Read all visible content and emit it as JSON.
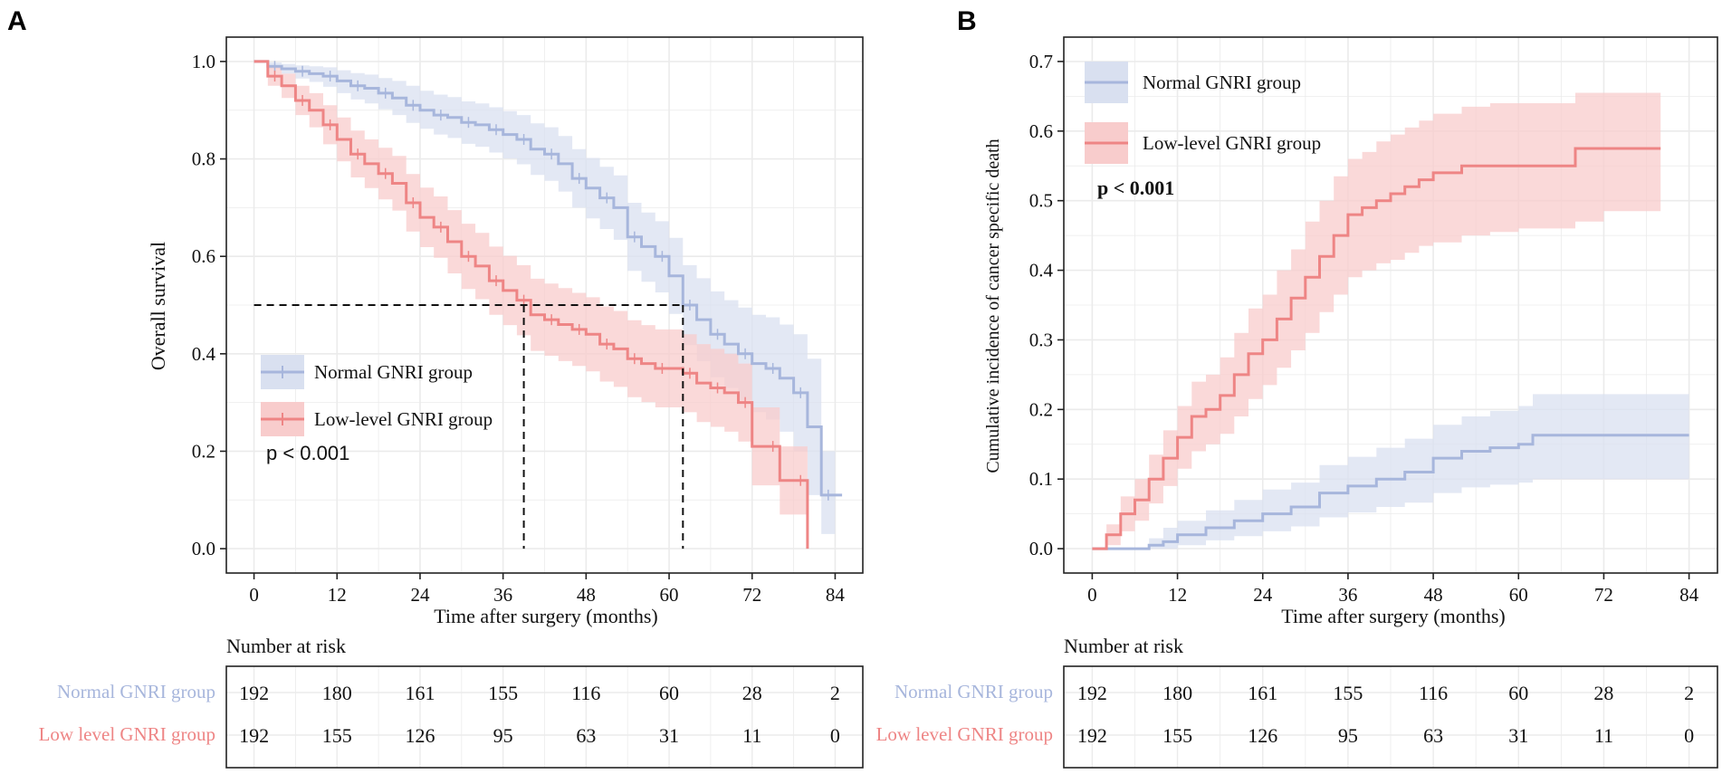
{
  "colors": {
    "normal": "#a7b6dc",
    "normal_band": "#d9e0f0",
    "low": "#ee8585",
    "low_band": "#f8cccc",
    "grid": "#ebebeb",
    "axis": "#222222"
  },
  "panel_a": {
    "letter": "A",
    "pvalue": "p < 0.001",
    "legend": [
      "Normal GNRI group",
      "Low-level GNRI group"
    ]
  },
  "panel_b": {
    "letter": "B",
    "pvalue": "p < 0.001",
    "legend": [
      "Normal GNRI group",
      "Low-level GNRI group"
    ]
  },
  "risk_table": {
    "title": "Number at risk",
    "row_labels": [
      "Normal GNRI group",
      "Low level GNRI group"
    ],
    "times": [
      0,
      12,
      24,
      36,
      48,
      60,
      72,
      84
    ],
    "normal": [
      "192",
      "180",
      "161",
      "155",
      "116",
      "60",
      "28",
      "2"
    ],
    "low": [
      "192",
      "155",
      "126",
      "95",
      "63",
      "31",
      "11",
      "0"
    ]
  },
  "chart_data": [
    {
      "id": "A",
      "type": "line",
      "title": "",
      "xlabel": "Time after surgery (months)",
      "ylabel": "Overall survival",
      "xlim": [
        -4,
        88
      ],
      "ylim": [
        -0.05,
        1.05
      ],
      "xticks": [
        0,
        12,
        24,
        36,
        48,
        60,
        72,
        84
      ],
      "yticks": [
        "0.0",
        "0.2",
        "0.4",
        "0.6",
        "0.8",
        "1.0"
      ],
      "median_survival": {
        "low": 39,
        "normal": 62
      },
      "reference_y": 0.5,
      "series": [
        {
          "name": "Normal GNRI group",
          "x": [
            0,
            2,
            4,
            6,
            8,
            10,
            12,
            14,
            16,
            18,
            20,
            22,
            24,
            26,
            28,
            30,
            32,
            34,
            36,
            38,
            40,
            42,
            44,
            46,
            48,
            50,
            52,
            54,
            56,
            58,
            60,
            62,
            64,
            66,
            68,
            70,
            72,
            74,
            76,
            78,
            80,
            82,
            84
          ],
          "y": [
            1.0,
            0.99,
            0.985,
            0.98,
            0.975,
            0.97,
            0.96,
            0.95,
            0.945,
            0.935,
            0.925,
            0.91,
            0.9,
            0.89,
            0.885,
            0.875,
            0.87,
            0.86,
            0.85,
            0.84,
            0.82,
            0.81,
            0.79,
            0.76,
            0.74,
            0.72,
            0.7,
            0.64,
            0.62,
            0.6,
            0.56,
            0.5,
            0.47,
            0.44,
            0.42,
            0.4,
            0.38,
            0.37,
            0.35,
            0.32,
            0.25,
            0.11,
            0.11
          ],
          "ci_low": [
            1.0,
            0.985,
            0.975,
            0.965,
            0.958,
            0.948,
            0.935,
            0.922,
            0.914,
            0.902,
            0.89,
            0.874,
            0.862,
            0.85,
            0.843,
            0.831,
            0.825,
            0.813,
            0.801,
            0.789,
            0.767,
            0.755,
            0.733,
            0.7,
            0.678,
            0.656,
            0.634,
            0.57,
            0.548,
            0.526,
            0.482,
            0.418,
            0.385,
            0.352,
            0.33,
            0.305,
            0.28,
            0.265,
            0.24,
            0.2,
            0.11,
            0.03,
            0.03
          ],
          "ci_high": [
            1.0,
            0.998,
            0.995,
            0.992,
            0.99,
            0.988,
            0.982,
            0.976,
            0.973,
            0.966,
            0.96,
            0.95,
            0.94,
            0.932,
            0.927,
            0.918,
            0.914,
            0.906,
            0.898,
            0.89,
            0.873,
            0.865,
            0.847,
            0.82,
            0.802,
            0.784,
            0.766,
            0.71,
            0.69,
            0.672,
            0.638,
            0.582,
            0.555,
            0.528,
            0.51,
            0.495,
            0.48,
            0.475,
            0.46,
            0.44,
            0.39,
            0.2,
            0.2
          ]
        },
        {
          "name": "Low-level GNRI group",
          "x": [
            0,
            2,
            4,
            6,
            8,
            10,
            12,
            14,
            16,
            18,
            20,
            22,
            24,
            26,
            28,
            30,
            32,
            34,
            36,
            38,
            40,
            42,
            44,
            46,
            48,
            50,
            52,
            54,
            56,
            58,
            60,
            62,
            64,
            66,
            68,
            70,
            72,
            74,
            76,
            78,
            80
          ],
          "y": [
            1.0,
            0.97,
            0.95,
            0.92,
            0.9,
            0.87,
            0.84,
            0.81,
            0.79,
            0.77,
            0.75,
            0.71,
            0.68,
            0.66,
            0.63,
            0.6,
            0.58,
            0.55,
            0.53,
            0.51,
            0.48,
            0.47,
            0.46,
            0.45,
            0.44,
            0.42,
            0.41,
            0.39,
            0.38,
            0.37,
            0.37,
            0.36,
            0.34,
            0.33,
            0.32,
            0.3,
            0.21,
            0.21,
            0.14,
            0.14,
            0.0
          ],
          "ci_low": [
            1.0,
            0.95,
            0.925,
            0.89,
            0.865,
            0.83,
            0.795,
            0.762,
            0.74,
            0.717,
            0.694,
            0.651,
            0.619,
            0.597,
            0.565,
            0.533,
            0.512,
            0.48,
            0.459,
            0.438,
            0.406,
            0.396,
            0.385,
            0.375,
            0.364,
            0.343,
            0.332,
            0.311,
            0.301,
            0.29,
            0.29,
            0.28,
            0.26,
            0.25,
            0.24,
            0.22,
            0.13,
            0.13,
            0.07,
            0.07,
            0.0
          ],
          "ci_high": [
            1.0,
            0.99,
            0.975,
            0.95,
            0.935,
            0.91,
            0.885,
            0.858,
            0.84,
            0.823,
            0.806,
            0.769,
            0.741,
            0.723,
            0.695,
            0.667,
            0.648,
            0.62,
            0.601,
            0.582,
            0.554,
            0.544,
            0.535,
            0.525,
            0.516,
            0.497,
            0.488,
            0.469,
            0.459,
            0.45,
            0.45,
            0.44,
            0.42,
            0.41,
            0.4,
            0.38,
            0.29,
            0.29,
            0.21,
            0.21,
            0.0
          ]
        }
      ]
    },
    {
      "id": "B",
      "type": "line",
      "title": "",
      "xlabel": "Time after surgery (months)",
      "ylabel": "Cumulative incidence of cancer specific death",
      "xlim": [
        -4,
        88
      ],
      "ylim": [
        -0.035,
        0.735
      ],
      "xticks": [
        0,
        12,
        24,
        36,
        48,
        60,
        72,
        84
      ],
      "yticks": [
        "0.0",
        "0.1",
        "0.2",
        "0.3",
        "0.4",
        "0.5",
        "0.6",
        "0.7"
      ],
      "series": [
        {
          "name": "Normal GNRI group",
          "x": [
            0,
            4,
            8,
            10,
            12,
            16,
            20,
            24,
            28,
            32,
            36,
            40,
            44,
            48,
            52,
            56,
            60,
            62,
            68,
            76,
            84
          ],
          "y": [
            0.0,
            0.0,
            0.005,
            0.01,
            0.02,
            0.03,
            0.04,
            0.05,
            0.06,
            0.08,
            0.09,
            0.1,
            0.11,
            0.13,
            0.14,
            0.145,
            0.15,
            0.163,
            0.163,
            0.163,
            0.163
          ],
          "ci_low": [
            0.0,
            0.0,
            0.0,
            0.0,
            0.005,
            0.012,
            0.018,
            0.025,
            0.032,
            0.045,
            0.052,
            0.06,
            0.066,
            0.08,
            0.088,
            0.092,
            0.095,
            0.1,
            0.1,
            0.1,
            0.1
          ],
          "ci_high": [
            0.0,
            0.0,
            0.015,
            0.03,
            0.04,
            0.055,
            0.07,
            0.085,
            0.095,
            0.12,
            0.132,
            0.145,
            0.158,
            0.178,
            0.19,
            0.198,
            0.205,
            0.222,
            0.222,
            0.222,
            0.222
          ]
        },
        {
          "name": "Low-level GNRI group",
          "x": [
            0,
            2,
            4,
            6,
            8,
            10,
            12,
            14,
            16,
            18,
            20,
            22,
            24,
            26,
            28,
            30,
            32,
            34,
            36,
            38,
            40,
            42,
            44,
            46,
            48,
            52,
            56,
            60,
            64,
            68,
            72,
            76,
            80
          ],
          "y": [
            0.0,
            0.02,
            0.05,
            0.07,
            0.1,
            0.13,
            0.16,
            0.19,
            0.2,
            0.22,
            0.25,
            0.28,
            0.3,
            0.33,
            0.36,
            0.39,
            0.42,
            0.45,
            0.48,
            0.49,
            0.5,
            0.51,
            0.52,
            0.53,
            0.54,
            0.55,
            0.55,
            0.55,
            0.55,
            0.575,
            0.575,
            0.575,
            0.575
          ],
          "ci_low": [
            0.0,
            0.005,
            0.025,
            0.04,
            0.065,
            0.09,
            0.115,
            0.14,
            0.15,
            0.165,
            0.19,
            0.215,
            0.235,
            0.26,
            0.285,
            0.31,
            0.34,
            0.365,
            0.39,
            0.4,
            0.41,
            0.415,
            0.425,
            0.435,
            0.44,
            0.45,
            0.455,
            0.46,
            0.46,
            0.47,
            0.485,
            0.485,
            0.485
          ],
          "ci_high": [
            0.0,
            0.035,
            0.075,
            0.1,
            0.135,
            0.17,
            0.205,
            0.24,
            0.25,
            0.275,
            0.31,
            0.345,
            0.365,
            0.4,
            0.43,
            0.47,
            0.5,
            0.535,
            0.56,
            0.57,
            0.585,
            0.595,
            0.605,
            0.615,
            0.625,
            0.635,
            0.64,
            0.64,
            0.64,
            0.655,
            0.655,
            0.655,
            0.655
          ]
        }
      ]
    }
  ]
}
